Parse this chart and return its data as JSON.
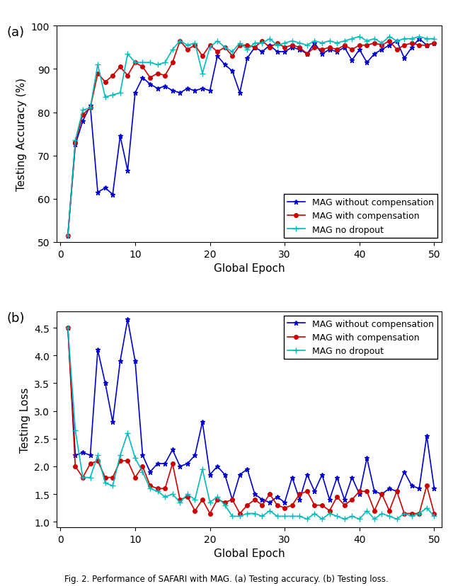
{
  "epochs": [
    1,
    2,
    3,
    4,
    5,
    6,
    7,
    8,
    9,
    10,
    11,
    12,
    13,
    14,
    15,
    16,
    17,
    18,
    19,
    20,
    21,
    22,
    23,
    24,
    25,
    26,
    27,
    28,
    29,
    30,
    31,
    32,
    33,
    34,
    35,
    36,
    37,
    38,
    39,
    40,
    41,
    42,
    43,
    44,
    45,
    46,
    47,
    48,
    49,
    50
  ],
  "acc_no_comp": [
    51.5,
    72.5,
    78.0,
    81.5,
    61.5,
    62.5,
    61.0,
    74.5,
    66.5,
    84.5,
    88.0,
    86.5,
    85.5,
    86.0,
    85.0,
    84.5,
    85.5,
    85.0,
    85.5,
    85.0,
    93.0,
    91.0,
    89.5,
    84.5,
    92.5,
    95.0,
    94.0,
    95.5,
    94.0,
    94.0,
    95.0,
    94.5,
    93.5,
    96.0,
    93.5,
    94.5,
    94.0,
    95.0,
    92.0,
    94.5,
    91.5,
    93.5,
    94.5,
    95.5,
    96.5,
    92.5,
    95.0,
    97.0,
    95.5,
    96.0
  ],
  "acc_with_comp": [
    51.5,
    73.0,
    79.5,
    81.0,
    89.0,
    87.0,
    88.5,
    90.5,
    88.5,
    91.5,
    90.5,
    88.0,
    89.0,
    88.5,
    91.5,
    96.5,
    94.5,
    95.5,
    93.0,
    95.5,
    94.0,
    95.0,
    93.0,
    95.5,
    95.5,
    95.0,
    96.5,
    95.0,
    96.0,
    95.0,
    95.5,
    95.0,
    93.5,
    95.0,
    94.5,
    95.0,
    94.5,
    95.5,
    94.5,
    95.5,
    95.5,
    96.0,
    95.5,
    96.5,
    94.5,
    95.5,
    96.0,
    95.5,
    95.5,
    96.0
  ],
  "acc_no_dropout": [
    51.5,
    73.5,
    80.5,
    81.0,
    91.0,
    83.5,
    84.0,
    84.5,
    93.5,
    91.5,
    91.5,
    91.5,
    91.0,
    91.5,
    94.5,
    96.5,
    95.5,
    96.0,
    89.0,
    95.0,
    96.5,
    95.0,
    94.0,
    96.0,
    94.5,
    96.0,
    96.0,
    97.0,
    95.5,
    96.0,
    96.5,
    96.0,
    95.5,
    96.5,
    96.0,
    96.5,
    96.0,
    96.5,
    97.0,
    97.5,
    96.5,
    97.0,
    96.0,
    97.5,
    96.5,
    97.0,
    97.0,
    97.5,
    97.0,
    97.0
  ],
  "loss_no_comp": [
    4.5,
    2.2,
    2.25,
    2.2,
    4.1,
    3.5,
    2.8,
    3.9,
    4.65,
    3.9,
    2.2,
    1.9,
    2.05,
    2.05,
    2.3,
    2.0,
    2.05,
    2.2,
    2.8,
    1.85,
    2.0,
    1.85,
    1.4,
    1.85,
    1.95,
    1.5,
    1.4,
    1.35,
    1.45,
    1.35,
    1.8,
    1.4,
    1.85,
    1.55,
    1.85,
    1.4,
    1.8,
    1.4,
    1.8,
    1.5,
    2.15,
    1.55,
    1.5,
    1.6,
    1.55,
    1.9,
    1.65,
    1.6,
    2.55,
    1.6
  ],
  "loss_with_comp": [
    4.5,
    2.0,
    1.8,
    2.05,
    2.1,
    1.8,
    1.8,
    2.1,
    2.1,
    1.8,
    2.0,
    1.65,
    1.6,
    1.6,
    2.05,
    1.4,
    1.45,
    1.2,
    1.4,
    1.15,
    1.4,
    1.35,
    1.4,
    1.15,
    1.3,
    1.4,
    1.3,
    1.5,
    1.3,
    1.25,
    1.3,
    1.5,
    1.55,
    1.3,
    1.3,
    1.2,
    1.45,
    1.3,
    1.4,
    1.55,
    1.55,
    1.2,
    1.5,
    1.2,
    1.55,
    1.15,
    1.15,
    1.15,
    1.65,
    1.15
  ],
  "loss_no_dropout": [
    4.5,
    2.65,
    1.8,
    1.8,
    2.2,
    1.7,
    1.65,
    2.2,
    2.6,
    2.15,
    1.9,
    1.6,
    1.55,
    1.45,
    1.5,
    1.35,
    1.5,
    1.4,
    1.95,
    1.35,
    1.45,
    1.3,
    1.1,
    1.1,
    1.15,
    1.15,
    1.1,
    1.2,
    1.1,
    1.1,
    1.1,
    1.1,
    1.05,
    1.15,
    1.05,
    1.15,
    1.1,
    1.05,
    1.1,
    1.05,
    1.2,
    1.05,
    1.15,
    1.1,
    1.05,
    1.15,
    1.1,
    1.15,
    1.25,
    1.1
  ],
  "color_no_comp": "#0000cc",
  "color_with_comp": "#cc0000",
  "color_no_dropout": "#00bbbb",
  "label_no_comp": "MAG without compensation",
  "label_with_comp": "MAG with compensation",
  "label_no_dropout": "MAG no dropout",
  "acc_ylabel": "Testing Accuracy (%)",
  "loss_ylabel": "Testing Loss",
  "xlabel": "Global Epoch",
  "acc_ylim": [
    50,
    100
  ],
  "loss_ylim": [
    0.9,
    4.8
  ],
  "acc_yticks": [
    50,
    60,
    70,
    80,
    90,
    100
  ],
  "loss_yticks": [
    1.0,
    1.5,
    2.0,
    2.5,
    3.0,
    3.5,
    4.0,
    4.5
  ],
  "xticks": [
    0,
    10,
    20,
    30,
    40,
    50
  ],
  "subplot_label_a": "(a)",
  "subplot_label_b": "(b)",
  "fig_caption": "Fig. 2. Performance of SAFARI with MAG. (a) Testing accuracy. (b) Testing loss.",
  "legend_loc_acc": "lower right",
  "legend_loc_loss": "upper right"
}
